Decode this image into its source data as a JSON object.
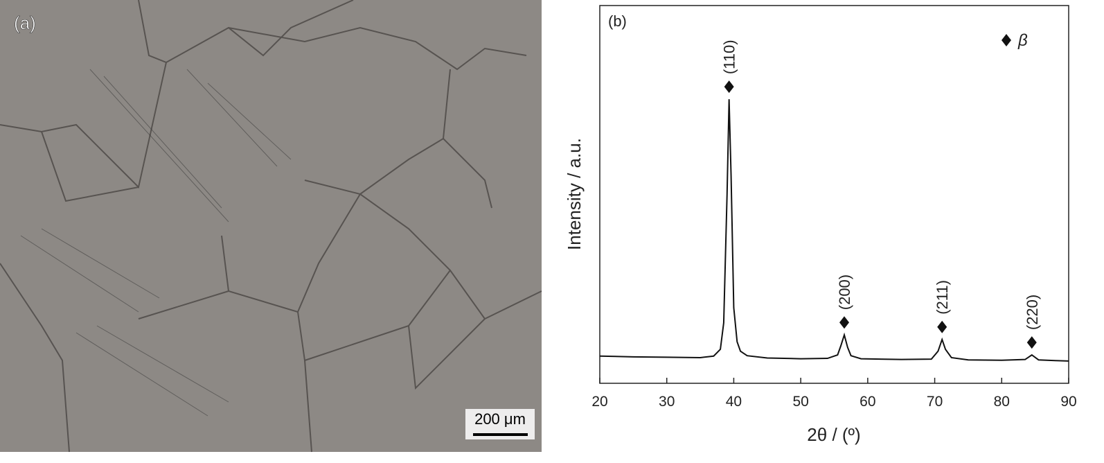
{
  "panel_a": {
    "label": "(a)",
    "scale_bar": "200 μm"
  },
  "chart_data": {
    "type": "line",
    "panel_label": "(b)",
    "x_label": "2θ / (º)",
    "y_label": "Intensity / a.u.",
    "x": [
      20,
      25,
      30,
      35,
      37,
      38,
      38.5,
      39,
      39.3,
      39.6,
      40,
      40.5,
      41,
      42,
      45,
      50,
      54,
      55.5,
      56,
      56.5,
      57,
      57.5,
      59,
      65,
      69.5,
      70.5,
      71.1,
      71.6,
      72.5,
      75,
      80,
      83.5,
      84.5,
      85.5,
      88,
      90
    ],
    "series": [
      {
        "name": "β",
        "color": "#111111",
        "values": [
          7.2,
          7.0,
          6.9,
          6.8,
          7.2,
          9,
          16,
          50,
          75.2,
          55,
          20,
          11,
          8.5,
          7.3,
          6.7,
          6.5,
          6.6,
          7.5,
          10,
          12.8,
          9.5,
          7.3,
          6.5,
          6.3,
          6.4,
          8.5,
          11.6,
          9,
          6.8,
          6.2,
          6.1,
          6.3,
          7.5,
          6.2,
          6.0,
          5.9
        ]
      }
    ],
    "annotations": [
      "(110)",
      "(200)",
      "(211)",
      "(220)"
    ],
    "xlim": [
      20,
      90
    ],
    "xticks": [
      20,
      30,
      40,
      50,
      60,
      70,
      80,
      90
    ],
    "ylim": [
      0,
      100
    ],
    "legend": "top-right"
  }
}
